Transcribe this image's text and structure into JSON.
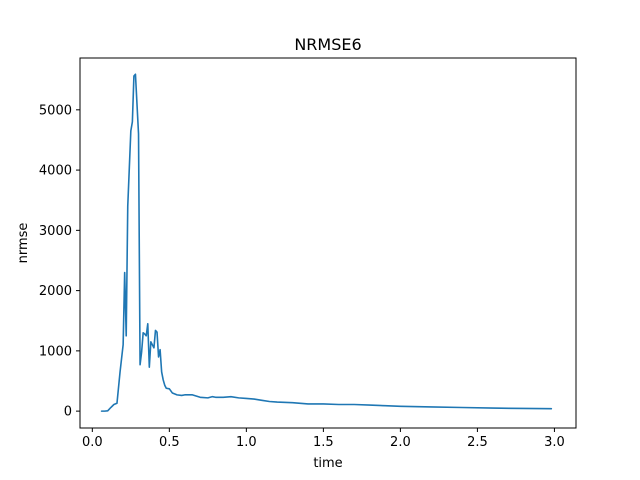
{
  "chart_data": {
    "type": "line",
    "title": "NRMSE6",
    "xlabel": "time",
    "ylabel": "nrmse",
    "xlim": [
      -0.08,
      3.14
    ],
    "ylim": [
      -280,
      5860
    ],
    "xticks": [
      0.0,
      0.5,
      1.0,
      1.5,
      2.0,
      2.5,
      3.0
    ],
    "xtick_labels": [
      "0.0",
      "0.5",
      "1.0",
      "1.5",
      "2.0",
      "2.5",
      "3.0"
    ],
    "yticks": [
      0,
      1000,
      2000,
      3000,
      4000,
      5000
    ],
    "ytick_labels": [
      "0",
      "1000",
      "2000",
      "3000",
      "4000",
      "5000"
    ],
    "grid": false,
    "series": [
      {
        "color": "#1f77b4",
        "x": [
          0.06,
          0.08,
          0.1,
          0.12,
          0.14,
          0.16,
          0.18,
          0.2,
          0.21,
          0.22,
          0.23,
          0.25,
          0.26,
          0.27,
          0.28,
          0.3,
          0.31,
          0.32,
          0.33,
          0.34,
          0.35,
          0.36,
          0.37,
          0.38,
          0.39,
          0.4,
          0.41,
          0.42,
          0.43,
          0.44,
          0.45,
          0.46,
          0.47,
          0.48,
          0.5,
          0.52,
          0.55,
          0.58,
          0.6,
          0.65,
          0.7,
          0.75,
          0.78,
          0.8,
          0.85,
          0.9,
          0.95,
          1.0,
          1.05,
          1.1,
          1.15,
          1.2,
          1.3,
          1.4,
          1.5,
          1.6,
          1.7,
          1.8,
          1.9,
          2.0,
          2.2,
          2.4,
          2.6,
          2.8,
          2.98
        ],
        "y": [
          0,
          0,
          5,
          60,
          110,
          130,
          650,
          1100,
          2300,
          1250,
          3400,
          4650,
          4800,
          5560,
          5590,
          4600,
          770,
          980,
          1300,
          1280,
          1250,
          1450,
          730,
          1150,
          1100,
          1050,
          1340,
          1310,
          900,
          1020,
          650,
          520,
          430,
          380,
          370,
          300,
          270,
          260,
          270,
          270,
          230,
          220,
          240,
          230,
          230,
          240,
          220,
          210,
          200,
          180,
          160,
          150,
          140,
          120,
          120,
          110,
          110,
          100,
          90,
          80,
          70,
          60,
          50,
          45,
          40
        ]
      }
    ]
  }
}
